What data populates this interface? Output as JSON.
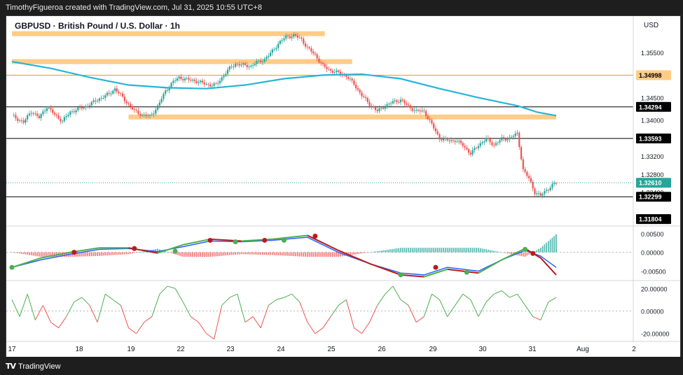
{
  "header": {
    "attribution": "TimothyFigueroa created with TradingView.com, Jul 31, 2025 10:55 UTC+8"
  },
  "footer": {
    "brand": "TradingView",
    "logo_icon": "tradingview-logo-icon"
  },
  "colors": {
    "up": "#26a69a",
    "down": "#ef5350",
    "ma": "#26b5d6",
    "zone": "#ffcc88",
    "hline": "#000000",
    "macd": "#2962ff",
    "signal_up": "#4caf50",
    "signal_down": "#b71c1c",
    "osc_up": "#4caf50",
    "osc_down": "#ef5350"
  },
  "chart_data": [
    {
      "type": "candlestick",
      "title": "GBPUSD · British Pound / U.S. Dollar · 1h",
      "currency": "USD",
      "ylim": [
        1.3165,
        1.36
      ],
      "y_ticks": [
        "1.35500",
        "1.34500",
        "1.34000",
        "1.33200",
        "1.32800",
        "1.32400"
      ],
      "x_ticks": [
        "17",
        "18",
        "19",
        "22",
        "23",
        "24",
        "25",
        "26",
        "29",
        "30",
        "31",
        "Aug",
        "2"
      ],
      "price_path": [
        [
          0,
          1.341
        ],
        [
          6,
          1.3395
        ],
        [
          10,
          1.342
        ],
        [
          14,
          1.3405
        ],
        [
          18,
          1.343
        ],
        [
          22,
          1.3412
        ],
        [
          26,
          1.3398
        ],
        [
          30,
          1.3418
        ],
        [
          34,
          1.3425
        ],
        [
          38,
          1.343
        ],
        [
          42,
          1.344
        ],
        [
          46,
          1.345
        ],
        [
          50,
          1.3458
        ],
        [
          53,
          1.347
        ],
        [
          56,
          1.3455
        ],
        [
          59,
          1.344
        ],
        [
          63,
          1.342
        ],
        [
          67,
          1.3412
        ],
        [
          71,
          1.3408
        ],
        [
          75,
          1.343
        ],
        [
          79,
          1.3465
        ],
        [
          83,
          1.3485
        ],
        [
          86,
          1.3495
        ],
        [
          90,
          1.349
        ],
        [
          94,
          1.3488
        ],
        [
          98,
          1.3482
        ],
        [
          102,
          1.3478
        ],
        [
          105,
          1.3478
        ],
        [
          109,
          1.35
        ],
        [
          112,
          1.3515
        ],
        [
          115,
          1.3525
        ],
        [
          119,
          1.3522
        ],
        [
          123,
          1.352
        ],
        [
          126,
          1.3528
        ],
        [
          130,
          1.3535
        ],
        [
          133,
          1.3548
        ],
        [
          137,
          1.357
        ],
        [
          141,
          1.3585
        ],
        [
          145,
          1.3588
        ],
        [
          149,
          1.358
        ],
        [
          152,
          1.356
        ],
        [
          156,
          1.3545
        ],
        [
          160,
          1.352
        ],
        [
          164,
          1.351
        ],
        [
          168,
          1.3505
        ],
        [
          172,
          1.3498
        ],
        [
          176,
          1.348
        ],
        [
          180,
          1.3455
        ],
        [
          184,
          1.3435
        ],
        [
          188,
          1.342
        ],
        [
          192,
          1.3432
        ],
        [
          196,
          1.344
        ],
        [
          200,
          1.3445
        ],
        [
          204,
          1.343
        ],
        [
          208,
          1.342
        ],
        [
          212,
          1.342
        ],
        [
          216,
          1.339
        ],
        [
          220,
          1.336
        ],
        [
          224,
          1.3355
        ],
        [
          228,
          1.3355
        ],
        [
          232,
          1.3345
        ],
        [
          236,
          1.3325
        ],
        [
          240,
          1.3345
        ],
        [
          244,
          1.3358
        ],
        [
          248,
          1.3345
        ],
        [
          252,
          1.3358
        ],
        [
          256,
          1.336
        ],
        [
          260,
          1.337
        ],
        [
          263,
          1.329
        ],
        [
          266,
          1.327
        ],
        [
          269,
          1.324
        ],
        [
          272,
          1.3232
        ],
        [
          275,
          1.3245
        ],
        [
          278,
          1.3255
        ],
        [
          280,
          1.3261
        ]
      ],
      "moving_average": [
        [
          0,
          1.353
        ],
        [
          20,
          1.3515
        ],
        [
          40,
          1.3495
        ],
        [
          60,
          1.3478
        ],
        [
          80,
          1.3472
        ],
        [
          100,
          1.347
        ],
        [
          120,
          1.3478
        ],
        [
          140,
          1.3492
        ],
        [
          160,
          1.35
        ],
        [
          180,
          1.3502
        ],
        [
          200,
          1.3492
        ],
        [
          220,
          1.347
        ],
        [
          240,
          1.345
        ],
        [
          260,
          1.3432
        ],
        [
          270,
          1.3418
        ],
        [
          280,
          1.341
        ]
      ],
      "zones": [
        {
          "x0": 0,
          "x1": 161,
          "y": 1.3592
        },
        {
          "x0": 0,
          "x1": 175,
          "y": 1.353
        },
        {
          "x0": 60,
          "x1": 280,
          "y": 1.3407
        }
      ],
      "h_lines": [
        {
          "value": "1.34998",
          "y": 1.34998,
          "style": "orange",
          "label_bg": "#ffcc88",
          "label_fg": "#000000"
        },
        {
          "value": "1.34294",
          "y": 1.34294,
          "style": "solid",
          "label_bg": "#000000",
          "label_fg": "#ffffff"
        },
        {
          "value": "1.33593",
          "y": 1.33593,
          "style": "solid",
          "label_bg": "#000000",
          "label_fg": "#ffffff"
        },
        {
          "value": "1.32610",
          "y": 1.3261,
          "style": "dotted",
          "label_bg": "#26a69a",
          "label_fg": "#ffffff"
        },
        {
          "value": "1.32299",
          "y": 1.32299,
          "style": "solid",
          "label_bg": "#000000",
          "label_fg": "#ffffff"
        },
        {
          "value": "1.31804",
          "y": 1.31804,
          "style": "none",
          "label_bg": "#000000",
          "label_fg": "#ffffff"
        }
      ]
    },
    {
      "type": "macd",
      "ylim": [
        -0.0075,
        0.007
      ],
      "y_ticks": [
        "0.00500",
        "0.00000",
        "-0.00500"
      ],
      "macd_line": [
        [
          0,
          -0.004
        ],
        [
          15,
          -0.002
        ],
        [
          30,
          -0.0005
        ],
        [
          45,
          0.0008
        ],
        [
          60,
          0.001
        ],
        [
          75,
          0.0002
        ],
        [
          88,
          0.0015
        ],
        [
          102,
          0.003
        ],
        [
          118,
          0.0028
        ],
        [
          134,
          0.0032
        ],
        [
          152,
          0.004
        ],
        [
          168,
          0.0
        ],
        [
          184,
          -0.003
        ],
        [
          200,
          -0.0055
        ],
        [
          212,
          -0.006
        ],
        [
          224,
          -0.004
        ],
        [
          240,
          -0.005
        ],
        [
          252,
          -0.002
        ],
        [
          264,
          0.0005
        ],
        [
          272,
          -0.001
        ],
        [
          280,
          -0.004
        ]
      ],
      "signal_line": [
        [
          0,
          -0.004
        ],
        [
          15,
          -0.0015
        ],
        [
          30,
          0.0
        ],
        [
          45,
          0.0012
        ],
        [
          60,
          0.0012
        ],
        [
          75,
          -0.0002
        ],
        [
          88,
          0.002
        ],
        [
          102,
          0.0035
        ],
        [
          118,
          0.003
        ],
        [
          134,
          0.0035
        ],
        [
          152,
          0.0045
        ],
        [
          168,
          0.0005
        ],
        [
          184,
          -0.003
        ],
        [
          200,
          -0.006
        ],
        [
          212,
          -0.0065
        ],
        [
          224,
          -0.0045
        ],
        [
          240,
          -0.0055
        ],
        [
          252,
          -0.002
        ],
        [
          264,
          0.001
        ],
        [
          272,
          -0.0015
        ],
        [
          280,
          -0.006
        ]
      ],
      "cross_markers": [
        {
          "x": 0,
          "y": -0.004,
          "kind": "up"
        },
        {
          "x": 32,
          "y": 0.0,
          "kind": "down"
        },
        {
          "x": 63,
          "y": 0.001,
          "kind": "down"
        },
        {
          "x": 84,
          "y": 0.0003,
          "kind": "up"
        },
        {
          "x": 102,
          "y": 0.0032,
          "kind": "down"
        },
        {
          "x": 115,
          "y": 0.0028,
          "kind": "up"
        },
        {
          "x": 130,
          "y": 0.0032,
          "kind": "down"
        },
        {
          "x": 140,
          "y": 0.0032,
          "kind": "up"
        },
        {
          "x": 156,
          "y": 0.0043,
          "kind": "down"
        },
        {
          "x": 200,
          "y": -0.006,
          "kind": "up"
        },
        {
          "x": 218,
          "y": -0.004,
          "kind": "down"
        },
        {
          "x": 234,
          "y": -0.0053,
          "kind": "up"
        },
        {
          "x": 264,
          "y": 0.0008,
          "kind": "up"
        },
        {
          "x": 268,
          "y": -0.0003,
          "kind": "down"
        }
      ]
    },
    {
      "type": "oscillator",
      "ylim": [
        -27,
        27
      ],
      "y_ticks": [
        "20.00000",
        "0.00000",
        "-20.00000"
      ],
      "values": [
        [
          0,
          10
        ],
        [
          4,
          -5
        ],
        [
          8,
          15
        ],
        [
          12,
          -8
        ],
        [
          16,
          5
        ],
        [
          20,
          -10
        ],
        [
          24,
          -15
        ],
        [
          28,
          -5
        ],
        [
          32,
          8
        ],
        [
          36,
          12
        ],
        [
          40,
          5
        ],
        [
          44,
          -10
        ],
        [
          48,
          15
        ],
        [
          52,
          10
        ],
        [
          56,
          5
        ],
        [
          60,
          -15
        ],
        [
          64,
          -20
        ],
        [
          68,
          -10
        ],
        [
          72,
          -5
        ],
        [
          76,
          15
        ],
        [
          80,
          22
        ],
        [
          84,
          20
        ],
        [
          88,
          8
        ],
        [
          92,
          -5
        ],
        [
          96,
          -10
        ],
        [
          100,
          -20
        ],
        [
          104,
          -25
        ],
        [
          108,
          5
        ],
        [
          112,
          12
        ],
        [
          116,
          15
        ],
        [
          120,
          -10
        ],
        [
          124,
          -5
        ],
        [
          128,
          -15
        ],
        [
          132,
          5
        ],
        [
          136,
          10
        ],
        [
          140,
          12
        ],
        [
          144,
          15
        ],
        [
          148,
          8
        ],
        [
          152,
          -10
        ],
        [
          156,
          -20
        ],
        [
          160,
          -15
        ],
        [
          164,
          -5
        ],
        [
          168,
          5
        ],
        [
          172,
          10
        ],
        [
          176,
          -15
        ],
        [
          180,
          -20
        ],
        [
          184,
          -10
        ],
        [
          188,
          5
        ],
        [
          192,
          15
        ],
        [
          196,
          22
        ],
        [
          200,
          10
        ],
        [
          204,
          5
        ],
        [
          208,
          -10
        ],
        [
          212,
          -5
        ],
        [
          216,
          15
        ],
        [
          220,
          10
        ],
        [
          224,
          -5
        ],
        [
          228,
          5
        ],
        [
          232,
          15
        ],
        [
          236,
          10
        ],
        [
          240,
          -5
        ],
        [
          244,
          8
        ],
        [
          248,
          15
        ],
        [
          252,
          18
        ],
        [
          256,
          12
        ],
        [
          260,
          15
        ],
        [
          264,
          5
        ],
        [
          268,
          -5
        ],
        [
          272,
          -8
        ],
        [
          276,
          8
        ],
        [
          280,
          12
        ]
      ]
    }
  ]
}
